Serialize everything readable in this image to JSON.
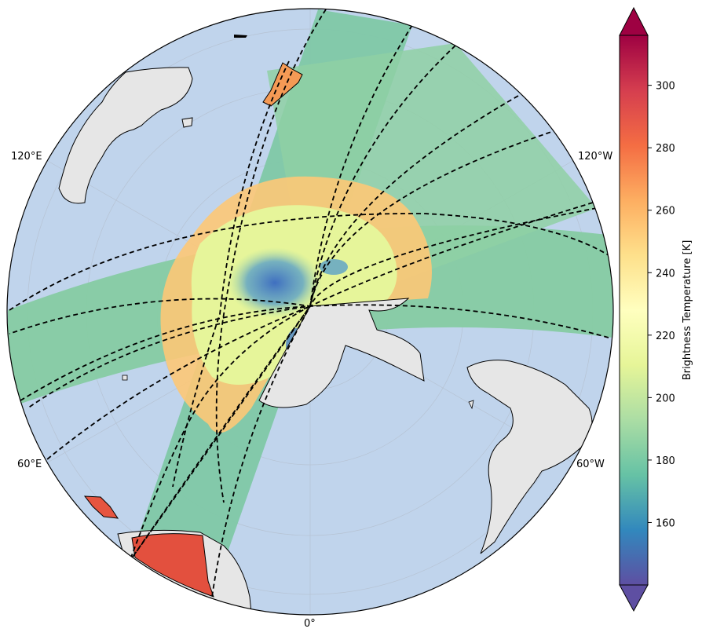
{
  "map": {
    "projection": "orthographic-south-pole",
    "ocean_color": "#c0d4ec",
    "land_color": "#e6e6e6",
    "coast_color": "#000000",
    "swath_style": "dashed-black",
    "labels": {
      "lon_120e": "120°E",
      "lon_120w": "120°W",
      "lon_60e": "60°E",
      "lon_60w": "60°W",
      "lon_0": "0°"
    }
  },
  "colorbar": {
    "title": "Brightness Temperature [K]",
    "colormap": "Spectral_r",
    "vmin": 140,
    "vmax": 316,
    "extend": "both",
    "ticks": [
      "160",
      "180",
      "200",
      "220",
      "240",
      "260",
      "280",
      "300"
    ],
    "tick_values": [
      160,
      180,
      200,
      220,
      240,
      260,
      280,
      300
    ],
    "colors": [
      "#5e4fa2",
      "#3288bd",
      "#66c2a5",
      "#abdda4",
      "#e6f598",
      "#ffffbf",
      "#fee08b",
      "#fdae61",
      "#f46d43",
      "#d53e4f",
      "#9e0142"
    ]
  }
}
